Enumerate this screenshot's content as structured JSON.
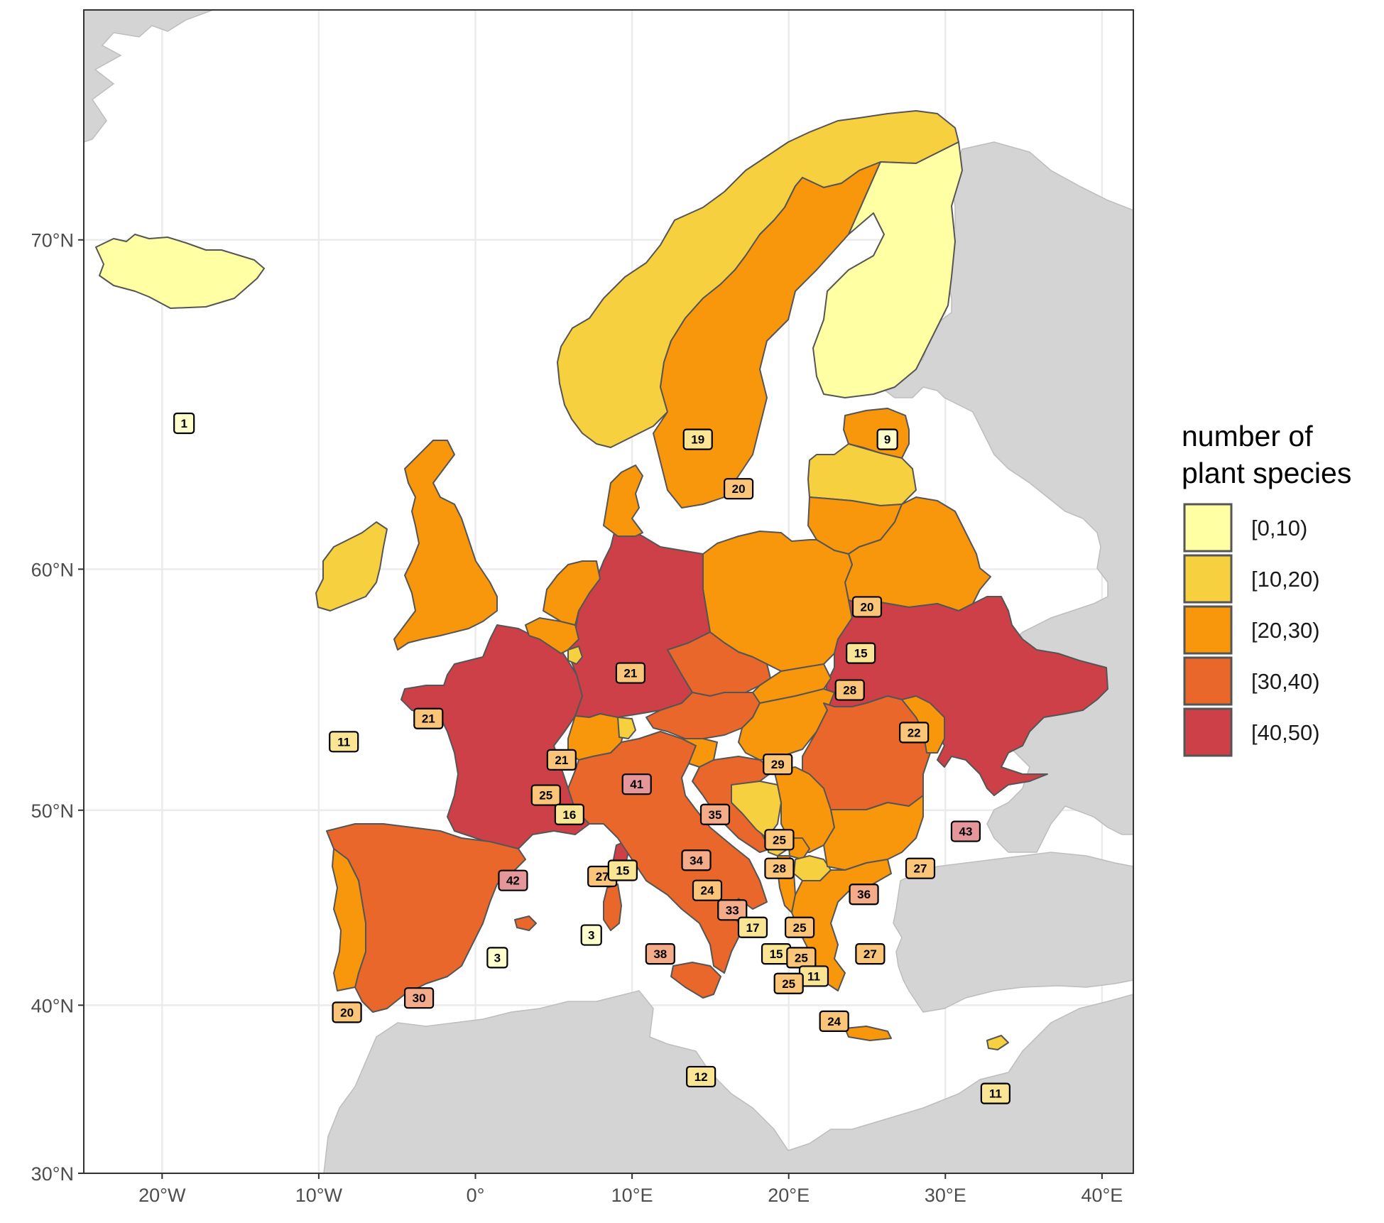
{
  "chart_data": {
    "type": "choropleth-map",
    "lon_range": [
      -25,
      42
    ],
    "lat_range": [
      30,
      75
    ],
    "x_ticks": [
      {
        "value": -20,
        "label": "20°W"
      },
      {
        "value": -10,
        "label": "10°W"
      },
      {
        "value": 0,
        "label": "0°"
      },
      {
        "value": 10,
        "label": "10°E"
      },
      {
        "value": 20,
        "label": "20°E"
      },
      {
        "value": 30,
        "label": "30°E"
      },
      {
        "value": 40,
        "label": "40°E"
      }
    ],
    "y_ticks": [
      {
        "value": 70,
        "label": "70°N"
      },
      {
        "value": 60,
        "label": "60°N"
      },
      {
        "value": 50,
        "label": "50°N"
      },
      {
        "value": 40,
        "label": "40°N"
      },
      {
        "value": 30,
        "label": "30°N"
      }
    ],
    "grid": true,
    "legend": {
      "title_lines": [
        "number of",
        "plant species"
      ],
      "position": "right",
      "classes": [
        {
          "label": "[0,10)",
          "color": "#FFFFA4"
        },
        {
          "label": "[10,20)",
          "color": "#F6D03E"
        },
        {
          "label": "[20,30)",
          "color": "#F8960C"
        },
        {
          "label": "[30,40)",
          "color": "#E9672A"
        },
        {
          "label": "[40,50)",
          "color": "#CE4047"
        }
      ]
    },
    "background_land_color": "#D4D4D4",
    "label_badges": [
      {
        "value": "1",
        "lon": -18.6,
        "lat": 64.9
      },
      {
        "value": "19",
        "lon": 14.2,
        "lat": 64.4
      },
      {
        "value": "20",
        "lon": 16.8,
        "lat": 62.8
      },
      {
        "value": "9",
        "lon": 26.3,
        "lat": 64.4
      },
      {
        "value": "20",
        "lon": 25.0,
        "lat": 58.6
      },
      {
        "value": "15",
        "lon": 24.6,
        "lat": 56.8
      },
      {
        "value": "28",
        "lon": 23.9,
        "lat": 55.3
      },
      {
        "value": "21",
        "lon": 9.9,
        "lat": 56.0
      },
      {
        "value": "21",
        "lon": -3.0,
        "lat": 54.1
      },
      {
        "value": "11",
        "lon": -8.4,
        "lat": 53.1
      },
      {
        "value": "22",
        "lon": 28.0,
        "lat": 53.5
      },
      {
        "value": "29",
        "lon": 19.3,
        "lat": 52.1
      },
      {
        "value": "21",
        "lon": 5.5,
        "lat": 52.3
      },
      {
        "value": "41",
        "lon": 10.3,
        "lat": 51.2
      },
      {
        "value": "25",
        "lon": 4.5,
        "lat": 50.7
      },
      {
        "value": "16",
        "lon": 6.0,
        "lat": 49.8
      },
      {
        "value": "35",
        "lon": 15.3,
        "lat": 49.8
      },
      {
        "value": "43",
        "lon": 31.3,
        "lat": 49.0
      },
      {
        "value": "25",
        "lon": 19.4,
        "lat": 48.6
      },
      {
        "value": "34",
        "lon": 14.1,
        "lat": 47.6
      },
      {
        "value": "28",
        "lon": 19.4,
        "lat": 47.2
      },
      {
        "value": "27",
        "lon": 28.4,
        "lat": 47.2
      },
      {
        "value": "42",
        "lon": 2.4,
        "lat": 46.6
      },
      {
        "value": "27",
        "lon": 8.1,
        "lat": 46.8
      },
      {
        "value": "15",
        "lon": 9.4,
        "lat": 47.1
      },
      {
        "value": "24",
        "lon": 14.8,
        "lat": 46.1
      },
      {
        "value": "36",
        "lon": 24.8,
        "lat": 45.9
      },
      {
        "value": "33",
        "lon": 16.4,
        "lat": 45.1
      },
      {
        "value": "17",
        "lon": 17.7,
        "lat": 44.2
      },
      {
        "value": "25",
        "lon": 20.7,
        "lat": 44.2
      },
      {
        "value": "3",
        "lon": 7.4,
        "lat": 43.8
      },
      {
        "value": "38",
        "lon": 11.8,
        "lat": 42.8
      },
      {
        "value": "27",
        "lon": 25.2,
        "lat": 42.8
      },
      {
        "value": "15",
        "lon": 19.2,
        "lat": 42.8
      },
      {
        "value": "25",
        "lon": 20.8,
        "lat": 42.6
      },
      {
        "value": "3",
        "lon": 1.4,
        "lat": 42.6
      },
      {
        "value": "11",
        "lon": 21.6,
        "lat": 41.6
      },
      {
        "value": "25",
        "lon": 20.0,
        "lat": 41.2
      },
      {
        "value": "30",
        "lon": -3.6,
        "lat": 40.4
      },
      {
        "value": "20",
        "lon": -8.2,
        "lat": 39.6
      },
      {
        "value": "24",
        "lon": 22.9,
        "lat": 39.1
      },
      {
        "value": "12",
        "lon": 14.4,
        "lat": 35.9
      },
      {
        "value": "11",
        "lon": 33.2,
        "lat": 34.9
      }
    ]
  }
}
